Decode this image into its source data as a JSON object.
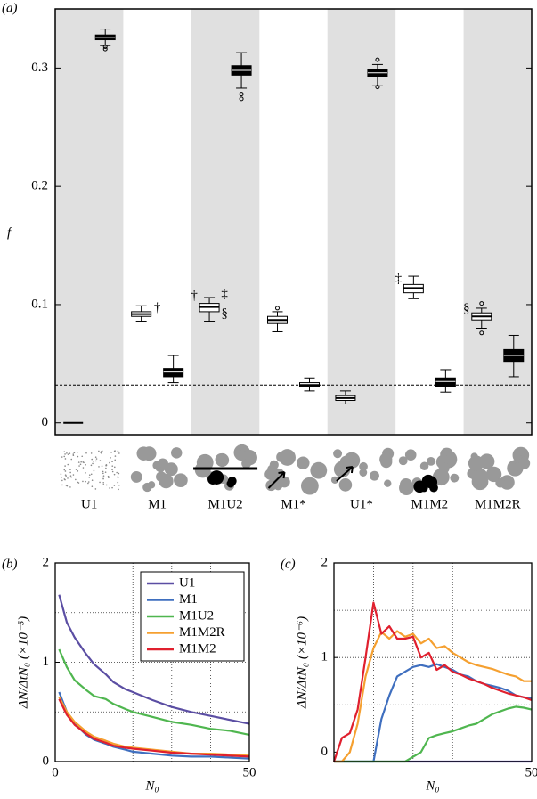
{
  "chart_data": [
    {
      "type": "box",
      "panel_label": "(a)",
      "y_label": "f",
      "categories": [
        "U1",
        "M1",
        "M1U2",
        "M1*",
        "U1*",
        "M1M2",
        "M1M2R"
      ],
      "ylim": [
        -0.01,
        0.35
      ],
      "yticks": [
        0,
        0.1,
        0.2,
        0.3
      ],
      "shading": "#e0e0e0",
      "reference_line": 0.032,
      "boxes": [
        {
          "fill": "#ffffff",
          "whislo": 0,
          "q1": 0,
          "med": 0,
          "q3": 0,
          "whishi": 0,
          "fliers": []
        },
        {
          "fill": "#000000",
          "whislo": 0.319,
          "q1": 0.324,
          "med": 0.326,
          "q3": 0.328,
          "whishi": 0.333,
          "fliers": [
            0.316,
            0.318
          ]
        },
        {
          "fill": "#ffffff",
          "whislo": 0.086,
          "q1": 0.09,
          "med": 0.092,
          "q3": 0.094,
          "whishi": 0.099,
          "fliers": []
        },
        {
          "fill": "#000000",
          "whislo": 0.034,
          "q1": 0.039,
          "med": 0.043,
          "q3": 0.046,
          "whishi": 0.057,
          "fliers": []
        },
        {
          "fill": "#ffffff",
          "whislo": 0.086,
          "q1": 0.094,
          "med": 0.098,
          "q3": 0.101,
          "whishi": 0.106,
          "fliers": []
        },
        {
          "fill": "#000000",
          "whislo": 0.283,
          "q1": 0.294,
          "med": 0.298,
          "q3": 0.302,
          "whishi": 0.313,
          "fliers": [
            0.278,
            0.274
          ]
        },
        {
          "fill": "#ffffff",
          "whislo": 0.077,
          "q1": 0.084,
          "med": 0.087,
          "q3": 0.09,
          "whishi": 0.094,
          "fliers": [
            0.097
          ]
        },
        {
          "fill": "#ffffff",
          "whislo": 0.027,
          "q1": 0.031,
          "med": 0.032,
          "q3": 0.034,
          "whishi": 0.038,
          "fliers": []
        },
        {
          "fill": "#ffffff",
          "whislo": 0.016,
          "q1": 0.019,
          "med": 0.021,
          "q3": 0.023,
          "whishi": 0.027,
          "fliers": []
        },
        {
          "fill": "#000000",
          "whislo": 0.285,
          "q1": 0.293,
          "med": 0.296,
          "q3": 0.299,
          "whishi": 0.303,
          "fliers": [
            0.284,
            0.307
          ]
        },
        {
          "fill": "#ffffff",
          "whislo": 0.105,
          "q1": 0.11,
          "med": 0.114,
          "q3": 0.117,
          "whishi": 0.124,
          "fliers": []
        },
        {
          "fill": "#000000",
          "whislo": 0.026,
          "q1": 0.031,
          "med": 0.035,
          "q3": 0.038,
          "whishi": 0.045,
          "fliers": []
        },
        {
          "fill": "#ffffff",
          "whislo": 0.08,
          "q1": 0.087,
          "med": 0.09,
          "q3": 0.093,
          "whishi": 0.097,
          "fliers": [
            0.101,
            0.076
          ]
        },
        {
          "fill": "#000000",
          "whislo": 0.039,
          "q1": 0.052,
          "med": 0.057,
          "q3": 0.062,
          "whishi": 0.074,
          "fliers": []
        }
      ],
      "annotations": [
        {
          "text": "†",
          "box": 2
        },
        {
          "text": "†",
          "box": 4
        },
        {
          "text": "‡",
          "box": 4
        },
        {
          "text": "§",
          "box": 4
        },
        {
          "text": "‡",
          "box": 10
        },
        {
          "text": "§",
          "box": 12
        }
      ]
    },
    {
      "type": "line",
      "panel_label": "(b)",
      "x_label": "N₀",
      "y_label": "ΔN/ΔtN₀ (×10⁻⁵)",
      "xlim": [
        0,
        50
      ],
      "ylim": [
        0,
        2
      ],
      "xticks": [
        0,
        50
      ],
      "yticks": [
        0,
        1,
        2
      ],
      "xgrid": [
        10,
        20,
        30,
        40
      ],
      "ygrid": [
        0.5,
        1,
        1.5
      ],
      "legend": "upper right",
      "x": [
        1,
        3,
        5,
        8,
        10,
        13,
        15,
        18,
        20,
        25,
        30,
        35,
        40,
        45,
        50
      ],
      "series": [
        {
          "name": "U1",
          "color": "#5b4ea3",
          "values": [
            1.68,
            1.4,
            1.25,
            1.08,
            0.98,
            0.88,
            0.8,
            0.73,
            0.7,
            0.62,
            0.55,
            0.5,
            0.46,
            0.42,
            0.38
          ]
        },
        {
          "name": "M1",
          "color": "#3f6fbf",
          "values": [
            0.7,
            0.5,
            0.38,
            0.27,
            0.22,
            0.18,
            0.15,
            0.12,
            0.1,
            0.08,
            0.06,
            0.05,
            0.05,
            0.04,
            0.03
          ]
        },
        {
          "name": "M1U2",
          "color": "#4fb64f",
          "values": [
            1.13,
            0.95,
            0.82,
            0.72,
            0.66,
            0.63,
            0.58,
            0.53,
            0.5,
            0.45,
            0.4,
            0.37,
            0.33,
            0.31,
            0.27
          ]
        },
        {
          "name": "M1M2R",
          "color": "#f5a030",
          "values": [
            0.65,
            0.5,
            0.4,
            0.3,
            0.25,
            0.21,
            0.18,
            0.15,
            0.14,
            0.12,
            0.1,
            0.08,
            0.08,
            0.07,
            0.06
          ]
        },
        {
          "name": "M1M2",
          "color": "#e0202e",
          "values": [
            0.63,
            0.47,
            0.37,
            0.28,
            0.23,
            0.19,
            0.16,
            0.14,
            0.13,
            0.11,
            0.09,
            0.08,
            0.07,
            0.06,
            0.05
          ]
        }
      ]
    },
    {
      "type": "line",
      "panel_label": "(c)",
      "x_label": "N₀",
      "y_label": "ΔN/ΔtN₀ (×10⁻⁶)",
      "xlim": [
        0,
        50
      ],
      "ylim": [
        -0.1,
        2
      ],
      "xticks": [
        50
      ],
      "yticks": [
        0,
        1,
        2
      ],
      "xgrid": [
        10,
        20,
        30,
        40
      ],
      "ygrid": [
        0.5,
        1,
        1.5
      ],
      "x": [
        0,
        2,
        4,
        6,
        8,
        10,
        12,
        14,
        16,
        18,
        20,
        22,
        24,
        26,
        28,
        30,
        32,
        34,
        36,
        38,
        40,
        42,
        44,
        46,
        48,
        50
      ],
      "series": [
        {
          "name": "U1",
          "color": "#5b4ea3",
          "values": [
            -0.1,
            -0.1,
            -0.1,
            -0.1,
            -0.1,
            -0.1,
            -0.1,
            -0.1,
            -0.1,
            -0.1,
            -0.1,
            -0.1,
            -0.1,
            -0.1,
            -0.1,
            -0.1,
            -0.1,
            -0.1,
            -0.1,
            -0.1,
            -0.1,
            -0.1,
            -0.1,
            -0.1,
            -0.1,
            -0.1
          ]
        },
        {
          "name": "M1",
          "color": "#3f6fbf",
          "values": [
            -0.1,
            -0.1,
            -0.1,
            -0.1,
            -0.1,
            -0.1,
            0.35,
            0.6,
            0.8,
            0.85,
            0.9,
            0.92,
            0.9,
            0.93,
            0.9,
            0.87,
            0.82,
            0.8,
            0.75,
            0.72,
            0.7,
            0.68,
            0.65,
            0.6,
            0.58,
            0.57
          ]
        },
        {
          "name": "M1U2",
          "color": "#4fb64f",
          "values": [
            -0.1,
            -0.1,
            -0.1,
            -0.1,
            -0.1,
            -0.1,
            -0.1,
            -0.1,
            -0.1,
            -0.1,
            -0.05,
            0,
            0.15,
            0.18,
            0.2,
            0.22,
            0.25,
            0.28,
            0.3,
            0.35,
            0.4,
            0.43,
            0.46,
            0.48,
            0.47,
            0.45
          ]
        },
        {
          "name": "M1M2R",
          "color": "#f5a030",
          "values": [
            -0.1,
            -0.1,
            0,
            0.3,
            0.8,
            1.1,
            1.27,
            1.2,
            1.28,
            1.22,
            1.25,
            1.15,
            1.2,
            1.1,
            1.12,
            1.05,
            1,
            0.95,
            0.92,
            0.9,
            0.88,
            0.85,
            0.82,
            0.8,
            0.75,
            0.75
          ]
        },
        {
          "name": "M1M2",
          "color": "#e0202e",
          "values": [
            -0.1,
            0.15,
            0.2,
            0.45,
            1,
            1.58,
            1.25,
            1.33,
            1.2,
            1.2,
            1.22,
            1,
            1.05,
            0.87,
            0.92,
            0.85,
            0.82,
            0.78,
            0.75,
            0.72,
            0.68,
            0.65,
            0.62,
            0.6,
            0.58,
            0.55
          ]
        }
      ]
    }
  ]
}
